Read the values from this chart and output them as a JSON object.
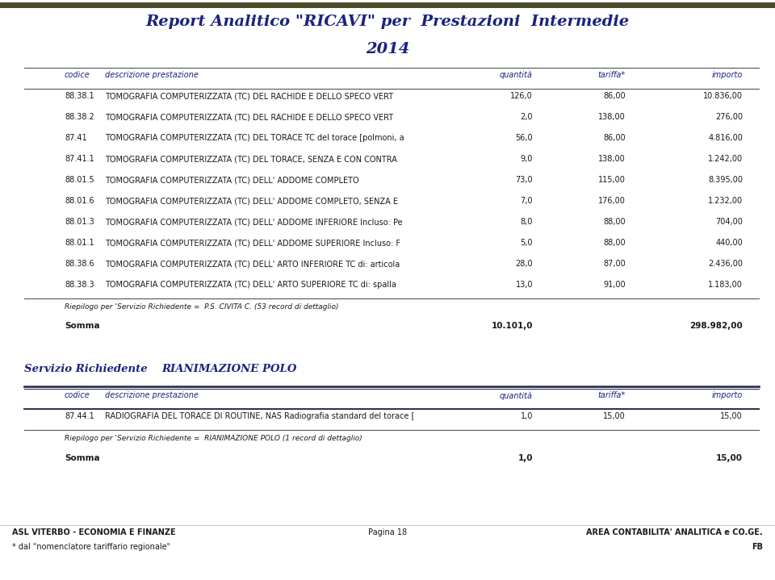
{
  "title_line1": "Report Analitico \"RICAVI\" per  Prestazioni  Intermedie",
  "title_line2": "2014",
  "title_color": "#1a237e",
  "bg_color": "#ffffff",
  "header_bar_color": "#4a4a2a",
  "table1_headers": [
    "codice",
    "descrizione prestazione",
    "quantità",
    "tariffa*",
    "importo"
  ],
  "table1_rows": [
    [
      "88.38.1",
      "TOMOGRAFIA COMPUTERIZZATA (TC) DEL RACHIDE E DELLO SPECO VERT",
      "126,0",
      "86,00",
      "10.836,00"
    ],
    [
      "88.38.2",
      "TOMOGRAFIA COMPUTERIZZATA (TC) DEL RACHIDE E DELLO SPECO VERT",
      "2,0",
      "138,00",
      "276,00"
    ],
    [
      "87.41",
      "TOMOGRAFIA COMPUTERIZZATA (TC) DEL TORACE TC del torace [polmoni, a",
      "56,0",
      "86,00",
      "4.816,00"
    ],
    [
      "87.41.1",
      "TOMOGRAFIA COMPUTERIZZATA (TC) DEL TORACE, SENZA E CON CONTRA",
      "9,0",
      "138,00",
      "1.242,00"
    ],
    [
      "88.01.5",
      "TOMOGRAFIA COMPUTERIZZATA (TC) DELL' ADDOME COMPLETO",
      "73,0",
      "115,00",
      "8.395,00"
    ],
    [
      "88.01.6",
      "TOMOGRAFIA COMPUTERIZZATA (TC) DELL' ADDOME COMPLETO, SENZA E",
      "7,0",
      "176,00",
      "1.232,00"
    ],
    [
      "88.01.3",
      "TOMOGRAFIA COMPUTERIZZATA (TC) DELL' ADDOME INFERIORE Incluso: Pe",
      "8,0",
      "88,00",
      "704,00"
    ],
    [
      "88.01.1",
      "TOMOGRAFIA COMPUTERIZZATA (TC) DELL' ADDOME SUPERIORE Incluso: F",
      "5,0",
      "88,00",
      "440,00"
    ],
    [
      "88.38.6",
      "TOMOGRAFIA COMPUTERIZZATA (TC) DELL' ARTO INFERIORE TC di: articola",
      "28,0",
      "87,00",
      "2.436,00"
    ],
    [
      "88.38.3",
      "TOMOGRAFIA COMPUTERIZZATA (TC) DELL' ARTO SUPERIORE TC di: spalla",
      "13,0",
      "91,00",
      "1.183,00"
    ]
  ],
  "riepilogo1": "Riepilogo per 'Servizio Richiedente =  P.S. CIVITA C. (53 record di dettaglio)",
  "somma1_label": "Somma",
  "somma1_qty": "10.101,0",
  "somma1_importo": "298.982,00",
  "servizio2_label": "Servizio Richiedente",
  "servizio2_value": "RIANIMAZIONE POLO",
  "table2_headers": [
    "codice",
    "descrizione prestazione",
    "quantità",
    "tariffa*",
    "importo"
  ],
  "table2_rows": [
    [
      "87.44.1",
      "RADIOGRAFIA DEL TORACE DI ROUTINE, NAS Radiografia standard del torace [",
      "1,0",
      "15,00",
      "15,00"
    ]
  ],
  "riepilogo2": "Riepilogo per 'Servizio Richiedente =  RIANIMAZIONE POLO (1 record di dettaglio)",
  "somma2_label": "Somma",
  "somma2_qty": "1,0",
  "somma2_importo": "15,00",
  "footer_left1": "ASL VITERBO - ECONOMIA E FINANZE",
  "footer_center": "Pagina 18",
  "footer_right1": "AREA CONTABILITA' ANALITICA e CO.GE.",
  "footer_left2": "* dal \"nomenclatore tariffario regionale\"",
  "footer_right2": "FB",
  "text_color_dark": "#1a1a1a",
  "text_color_blue": "#1a237e",
  "line_color": "#555555"
}
